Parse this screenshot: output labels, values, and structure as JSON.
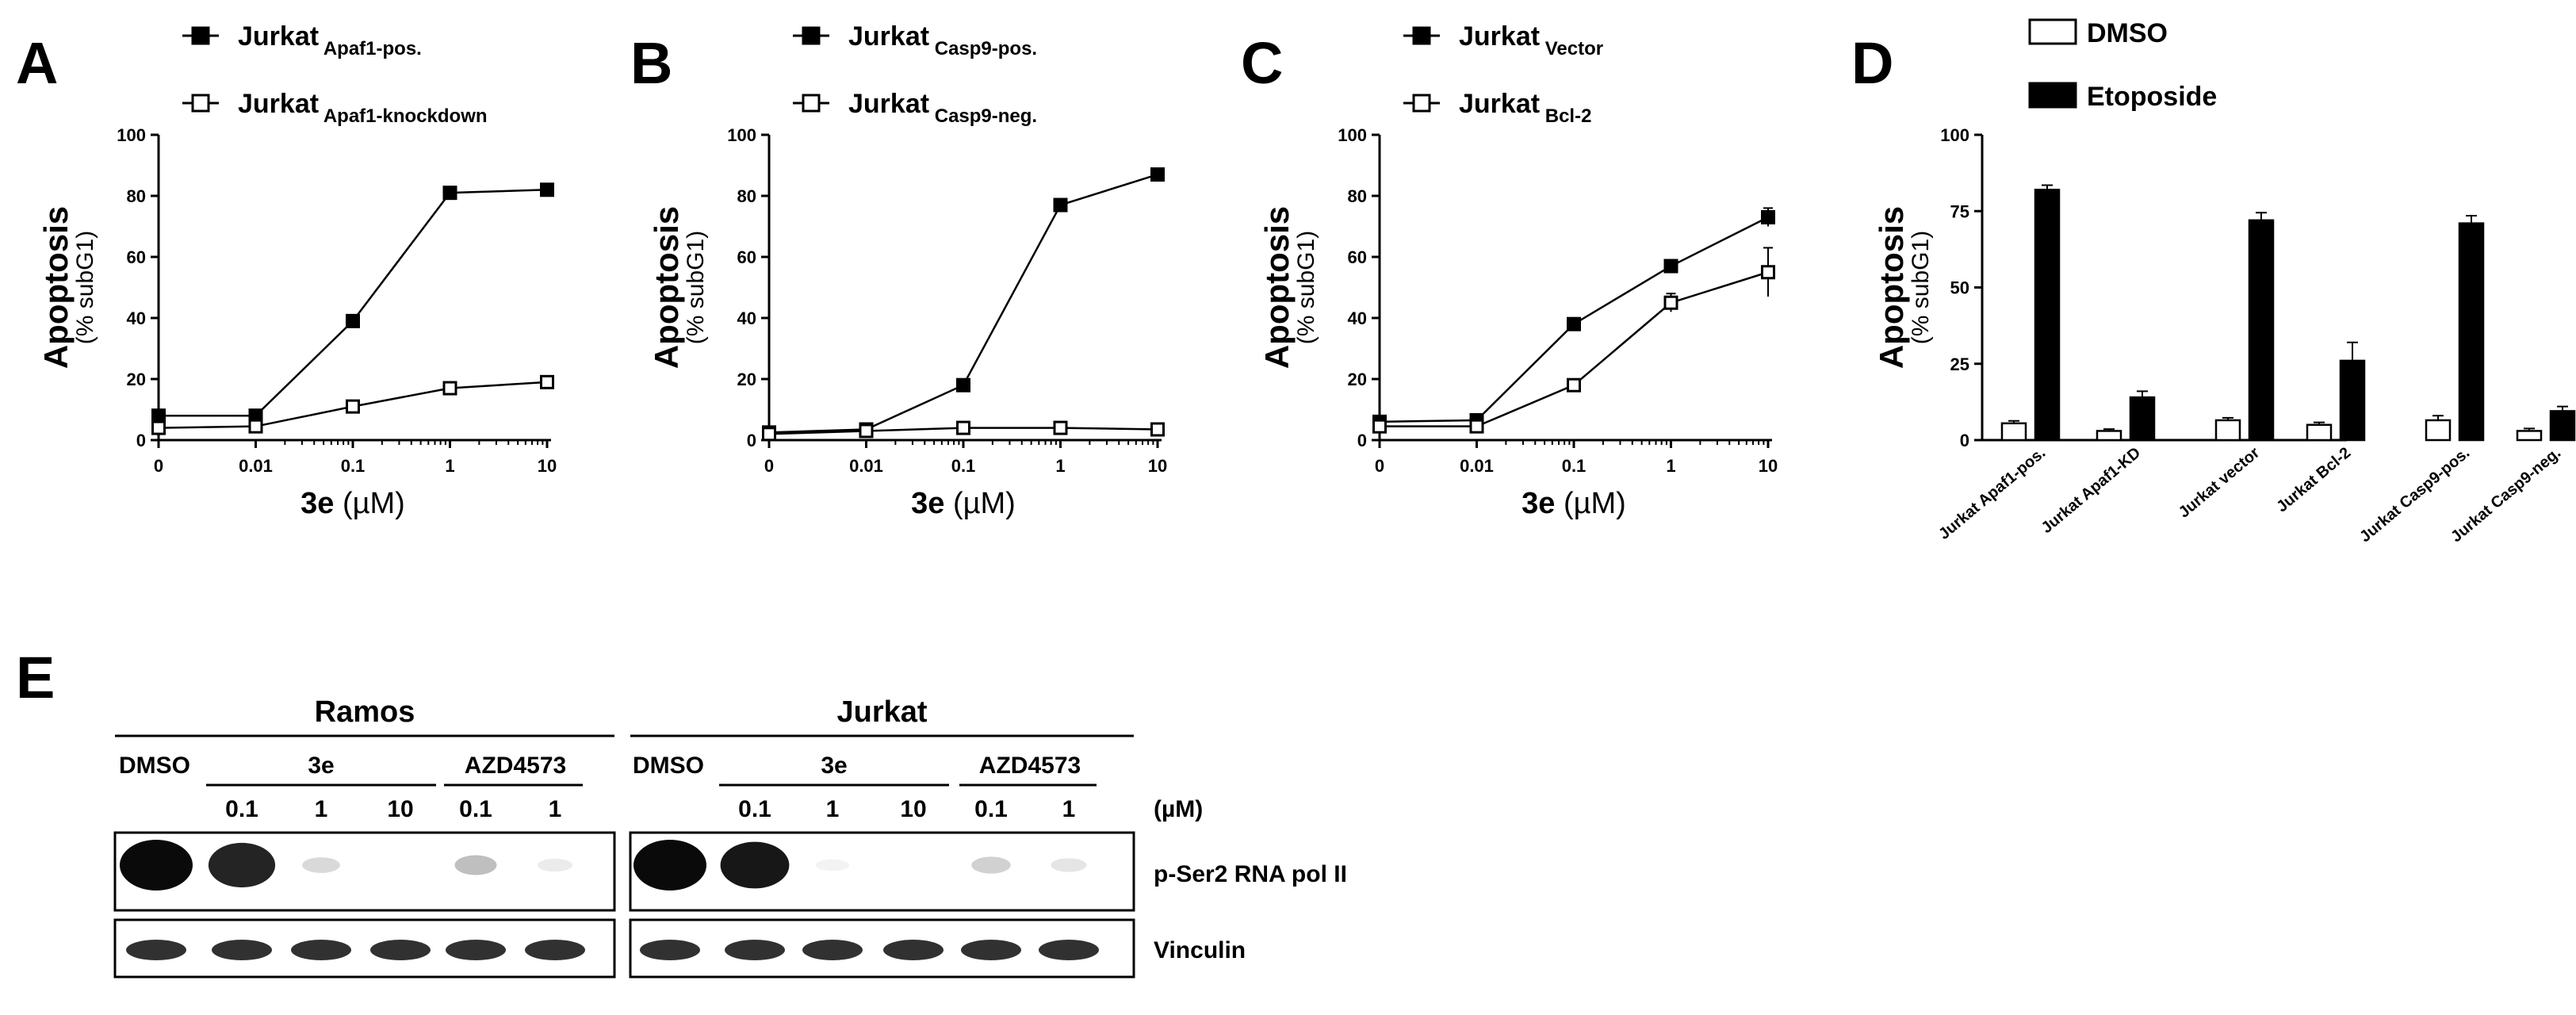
{
  "colors": {
    "ink": "#000000",
    "paper": "#ffffff",
    "blot": "#0a0a0a"
  },
  "chart_data": [
    {
      "panel": "A",
      "type": "line",
      "x_tick_labels": [
        "0",
        "0.01",
        "0.1",
        "1",
        "10"
      ],
      "x_values": [
        0,
        0.01,
        0.1,
        1,
        10
      ],
      "x_scale": "log (0 placed on break)",
      "ylim": [
        0,
        100
      ],
      "y_ticks": [
        0,
        20,
        40,
        60,
        80,
        100
      ],
      "ylabel": "Apoptosis",
      "ylabel_sub": "(% subG1)",
      "xlabel_bold": "3e",
      "xlabel_unit": " (µM)",
      "legend_placement": "top",
      "series": [
        {
          "name": "Jurkat",
          "name_sub": "Apaf1-pos.",
          "marker": "filled-square",
          "values": [
            8,
            8,
            39,
            81,
            82
          ],
          "errors": [
            0.8,
            0.8,
            1.2,
            1.2,
            1.2
          ]
        },
        {
          "name": "Jurkat",
          "name_sub": "Apaf1-knockdown",
          "marker": "open-square",
          "values": [
            4,
            4.5,
            11,
            17,
            19
          ],
          "errors": [
            0.8,
            0.8,
            1,
            1,
            1
          ]
        }
      ]
    },
    {
      "panel": "B",
      "type": "line",
      "x_tick_labels": [
        "0",
        "0.01",
        "0.1",
        "1",
        "10"
      ],
      "x_values": [
        0,
        0.01,
        0.1,
        1,
        10
      ],
      "x_scale": "log (0 placed on break)",
      "ylim": [
        0,
        100
      ],
      "y_ticks": [
        0,
        20,
        40,
        60,
        80,
        100
      ],
      "ylabel": "Apoptosis",
      "ylabel_sub": "(% subG1)",
      "xlabel_bold": "3e",
      "xlabel_unit": " (µM)",
      "legend_placement": "top",
      "series": [
        {
          "name": "Jurkat",
          "name_sub": "Casp9-pos.",
          "marker": "filled-square",
          "values": [
            2.5,
            3.5,
            18,
            77,
            87
          ],
          "errors": [
            0.8,
            0.8,
            1,
            1,
            1
          ]
        },
        {
          "name": "Jurkat",
          "name_sub": "Casp9-neg.",
          "marker": "open-square",
          "values": [
            2,
            3,
            4,
            4,
            3.5
          ],
          "errors": [
            0.6,
            0.6,
            0.6,
            0.6,
            0.6
          ]
        }
      ]
    },
    {
      "panel": "C",
      "type": "line",
      "x_tick_labels": [
        "0",
        "0.01",
        "0.1",
        "1",
        "10"
      ],
      "x_values": [
        0,
        0.01,
        0.1,
        1,
        10
      ],
      "x_scale": "log (0 placed on break)",
      "ylim": [
        0,
        100
      ],
      "y_ticks": [
        0,
        20,
        40,
        60,
        80,
        100
      ],
      "ylabel": "Apoptosis",
      "ylabel_sub": "(% subG1)",
      "xlabel_bold": "3e",
      "xlabel_unit": " (µM)",
      "legend_placement": "top",
      "series": [
        {
          "name": "Jurkat",
          "name_sub": "Vector",
          "marker": "filled-square",
          "values": [
            6,
            6.5,
            38,
            57,
            73
          ],
          "errors": [
            0.8,
            0.8,
            1.2,
            1.5,
            3
          ]
        },
        {
          "name": "Jurkat",
          "name_sub": "Bcl-2",
          "marker": "open-square",
          "values": [
            4.5,
            4.5,
            18,
            45,
            55
          ],
          "errors": [
            0.8,
            0.8,
            1,
            3,
            8
          ]
        }
      ]
    },
    {
      "panel": "D",
      "type": "bar",
      "categories": [
        "Jurkat Apaf1-pos.",
        "Jurkat Apaf1-KD",
        "Jurkat vector",
        "Jurkat Bcl-2",
        "Jurkat Casp9-pos.",
        "Jurkat Casp9-neg."
      ],
      "ylim": [
        0,
        100
      ],
      "y_ticks": [
        0,
        25,
        50,
        75,
        100
      ],
      "ylabel": "Apoptosis",
      "ylabel_sub": "(% subG1)",
      "legend_placement": "top",
      "series": [
        {
          "name": "DMSO",
          "fill": "open",
          "values": [
            5.5,
            3,
            6.5,
            5,
            6.5,
            3
          ],
          "errors": [
            0.8,
            0.6,
            0.8,
            0.8,
            1.5,
            0.8
          ]
        },
        {
          "name": "Etoposide",
          "fill": "filled",
          "values": [
            82,
            14,
            72,
            26,
            71,
            9.5
          ],
          "errors": [
            1.5,
            2,
            2.5,
            6,
            2.5,
            1.5
          ]
        }
      ]
    }
  ],
  "western_blot": {
    "panel": "E",
    "cell_lines": [
      "Ramos",
      "Jurkat"
    ],
    "dmso_label": "DMSO",
    "compound_label": "3e",
    "inhibitor_label": "AZD4573",
    "doses": [
      "0.1",
      "1",
      "10",
      "0.1",
      "1"
    ],
    "unit": "(µM)",
    "rows": [
      {
        "label": "p-Ser2 RNA pol II",
        "intensity": {
          "Ramos": [
            1.0,
            0.85,
            0.15,
            0.0,
            0.25,
            0.08
          ],
          "Jurkat": [
            1.0,
            0.9,
            0.05,
            0.0,
            0.18,
            0.1
          ]
        }
      },
      {
        "label": "Vinculin",
        "intensity": {
          "Ramos": [
            0.8,
            0.8,
            0.8,
            0.8,
            0.8,
            0.8
          ],
          "Jurkat": [
            0.8,
            0.8,
            0.8,
            0.8,
            0.8,
            0.8
          ]
        }
      }
    ]
  }
}
